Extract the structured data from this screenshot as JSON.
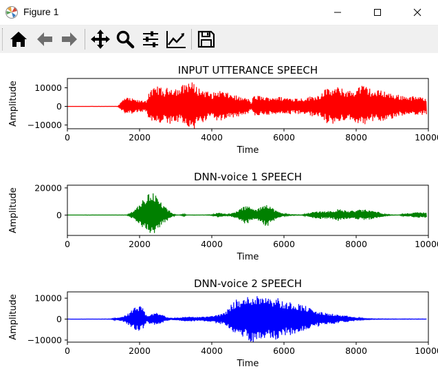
{
  "window": {
    "title": "Figure 1"
  },
  "toolbar": {
    "buttons": [
      "home-icon",
      "back-arrow-icon",
      "forward-arrow-icon",
      "pan-icon",
      "zoom-icon",
      "configure-subplots-icon",
      "edit-axis-icon",
      "save-icon"
    ]
  },
  "chart_data": [
    {
      "type": "line",
      "title": "INPUT UTTERANCE SPEECH",
      "xlabel": "Time",
      "ylabel": "Amplitude",
      "xlim": [
        0,
        10000
      ],
      "ylim": [
        -12000,
        15000
      ],
      "xticks": [
        0,
        2000,
        4000,
        6000,
        8000,
        10000
      ],
      "yticks": [
        -10000,
        0,
        10000
      ],
      "ytick_labels": [
        "−10000",
        "0",
        "10000"
      ],
      "color": "#ff0000",
      "series": [
        {
          "envelope_x": [
            0,
            1400,
            1500,
            1600,
            1800,
            2000,
            2200,
            2250,
            2350,
            2500,
            2700,
            2800,
            3000,
            3100,
            3200,
            3300,
            3400,
            3500,
            3650,
            3800,
            4000,
            4200,
            4400,
            4600,
            4800,
            5000,
            5100,
            5150,
            5300,
            5500,
            5700,
            6000,
            6500,
            7000,
            7100,
            7300,
            7500,
            7700,
            7900,
            8100,
            8300,
            8500,
            8700,
            8900,
            9100,
            9300,
            9500,
            9700,
            9800,
            9950
          ],
          "envelope_y": [
            0,
            100,
            2800,
            5000,
            4200,
            3200,
            3500,
            8000,
            9000,
            11500,
            8500,
            11000,
            10500,
            9500,
            12000,
            13500,
            13800,
            12500,
            10000,
            9000,
            7000,
            9000,
            7500,
            6500,
            5000,
            4500,
            2000,
            5500,
            6000,
            5000,
            5500,
            5000,
            4500,
            6500,
            9500,
            9500,
            10500,
            9000,
            8500,
            11500,
            11000,
            8000,
            9500,
            7500,
            6500,
            6000,
            5500,
            5500,
            5000,
            5000
          ]
        }
      ]
    },
    {
      "type": "line",
      "title": "DNN-voice 1 SPEECH",
      "xlabel": "Time",
      "ylabel": "Amplitude",
      "xlim": [
        0,
        10000
      ],
      "ylim": [
        -15000,
        22000
      ],
      "xticks": [
        0,
        2000,
        4000,
        6000,
        8000,
        10000
      ],
      "yticks": [
        0,
        20000
      ],
      "ytick_labels": [
        "0",
        "20000"
      ],
      "color": "#008000",
      "series": [
        {
          "envelope_x": [
            0,
            1650,
            1750,
            1850,
            1950,
            2050,
            2150,
            2250,
            2350,
            2450,
            2550,
            2650,
            2750,
            2900,
            3000,
            3100,
            3200,
            3250,
            3300,
            3500,
            3800,
            4000,
            4100,
            4200,
            4300,
            4400,
            4500,
            4600,
            4700,
            4800,
            4900,
            5000,
            5100,
            5200,
            5300,
            5400,
            5500,
            5600,
            5700,
            5800,
            5900,
            6000,
            6200,
            6500,
            6700,
            6800,
            7000,
            7200,
            7400,
            7500,
            7600,
            7800,
            8000,
            8200,
            8400,
            8600,
            8700,
            8800,
            9000,
            9200,
            9300,
            9400,
            9500,
            9600,
            9700,
            9800,
            9950
          ],
          "envelope_y": [
            0,
            100,
            2000,
            4000,
            7000,
            10000,
            13000,
            16000,
            19000,
            15000,
            11000,
            8000,
            5000,
            1500,
            200,
            100,
            600,
            800,
            100,
            100,
            100,
            300,
            1200,
            2200,
            1500,
            300,
            800,
            2000,
            3000,
            5000,
            6500,
            7000,
            5500,
            4000,
            5000,
            7000,
            9500,
            7500,
            5000,
            3000,
            2000,
            1000,
            300,
            150,
            1800,
            2500,
            3000,
            3000,
            3500,
            4500,
            4000,
            3000,
            3800,
            4200,
            3500,
            2500,
            1800,
            600,
            150,
            100,
            900,
            1300,
            1200,
            1800,
            2200,
            2000,
            2000
          ]
        }
      ]
    },
    {
      "type": "line",
      "title": "DNN-voice 2 SPEECH",
      "xlabel": "Time",
      "ylabel": "Amplitude",
      "xlim": [
        0,
        10000
      ],
      "ylim": [
        -11000,
        13000
      ],
      "xticks": [
        0,
        2000,
        4000,
        6000,
        8000,
        10000
      ],
      "yticks": [
        -10000,
        0,
        10000
      ],
      "ytick_labels": [
        "−10000",
        "0",
        "10000"
      ],
      "color": "#0000ff",
      "series": [
        {
          "envelope_x": [
            0,
            1200,
            1300,
            1400,
            1500,
            1600,
            1700,
            1800,
            1900,
            2000,
            2100,
            2150,
            2200,
            2300,
            2400,
            2500,
            2600,
            2700,
            2800,
            2900,
            3000,
            3200,
            3400,
            3600,
            3800,
            4000,
            4200,
            4300,
            4400,
            4500,
            4600,
            4700,
            4800,
            4900,
            5000,
            5100,
            5200,
            5300,
            5400,
            5500,
            5600,
            5700,
            5800,
            5900,
            6000,
            6200,
            6400,
            6600,
            6800,
            7000,
            7200,
            7400,
            7600,
            7800,
            8000,
            8200,
            8500,
            9000,
            9500,
            9950
          ],
          "envelope_y": [
            0,
            100,
            400,
            800,
            1200,
            1800,
            3000,
            4500,
            6000,
            6500,
            5000,
            3000,
            1500,
            2500,
            3000,
            3000,
            2500,
            1500,
            800,
            600,
            700,
            1000,
            1300,
            1000,
            1200,
            1500,
            2500,
            2500,
            4000,
            6500,
            8500,
            9500,
            9000,
            10000,
            11000,
            12000,
            11500,
            11500,
            12000,
            12500,
            11500,
            10500,
            11000,
            9500,
            8000,
            8500,
            7500,
            6500,
            4500,
            3500,
            2800,
            2500,
            1800,
            1500,
            800,
            300,
            150,
            100,
            100,
            100
          ]
        }
      ]
    }
  ]
}
